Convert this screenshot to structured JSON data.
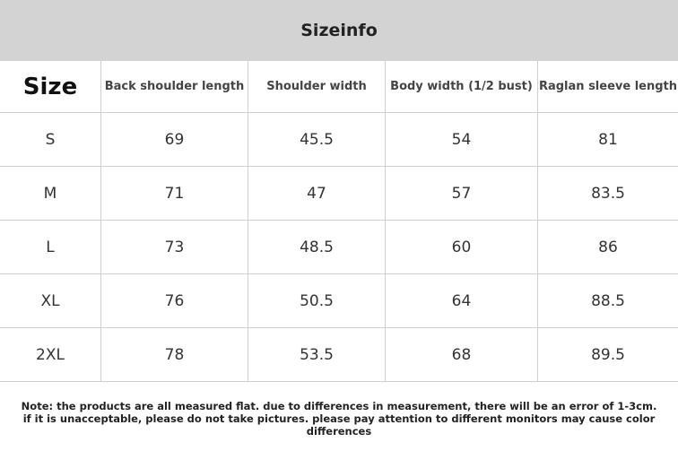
{
  "header": {
    "title": "Sizeinfo"
  },
  "table": {
    "columns": [
      "Size",
      "Back shoulder length",
      "Shoulder width",
      "Body width (1/2 bust)",
      "Raglan sleeve length"
    ],
    "rows": [
      [
        "S",
        69,
        45.5,
        54,
        81
      ],
      [
        "M",
        71,
        47,
        57,
        83.5
      ],
      [
        "L",
        73,
        48.5,
        60,
        86
      ],
      [
        "XL",
        76,
        50.5,
        64,
        88.5
      ],
      [
        "2XL",
        78,
        53.5,
        68,
        89.5
      ]
    ]
  },
  "note": "Note: the products are all measured flat. due to differences in measurement, there will be an error of 1-3cm. if it is unacceptable, please do not take pictures. please pay attention to different monitors may cause color differences"
}
